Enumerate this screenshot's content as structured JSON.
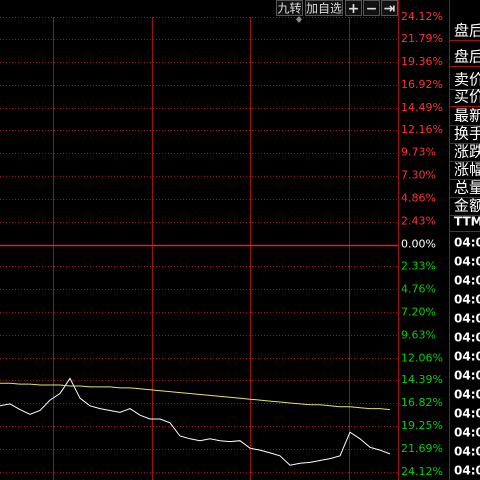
{
  "toolbar": [
    "九转",
    "加自选",
    "+",
    "−",
    "⇥"
  ],
  "chart_data": {
    "type": "line",
    "ylim": [
      -24.12,
      24.12
    ],
    "yticks": [
      {
        "value": 24.12,
        "label": "24.12%"
      },
      {
        "value": 21.79,
        "label": "21.79%"
      },
      {
        "value": 19.36,
        "label": "19.36%"
      },
      {
        "value": 16.92,
        "label": "16.92%"
      },
      {
        "value": 14.49,
        "label": "14.49%"
      },
      {
        "value": 12.16,
        "label": "12.16%"
      },
      {
        "value": 9.73,
        "label": "9.73%"
      },
      {
        "value": 7.3,
        "label": "7.30%"
      },
      {
        "value": 4.86,
        "label": "4.86%"
      },
      {
        "value": 2.43,
        "label": "2.43%"
      },
      {
        "value": 0,
        "label": "0.00%"
      },
      {
        "value": -2.33,
        "label": "2.33%"
      },
      {
        "value": -4.76,
        "label": "4.76%"
      },
      {
        "value": -7.2,
        "label": "7.20%"
      },
      {
        "value": -9.63,
        "label": "9.63%"
      },
      {
        "value": -12.06,
        "label": "12.06%"
      },
      {
        "value": -14.39,
        "label": "14.39%"
      },
      {
        "value": -16.82,
        "label": "16.82%"
      },
      {
        "value": -19.25,
        "label": "19.25%"
      },
      {
        "value": -21.69,
        "label": "21.69%"
      },
      {
        "value": -24.12,
        "label": "24.12%"
      }
    ],
    "grid": true,
    "series": [
      {
        "color": "#ffffff",
        "values": [
          -17.1,
          -16.9,
          -17.5,
          -18.0,
          -17.6,
          -16.5,
          -15.8,
          -14.2,
          -16.3,
          -17.1,
          -17.4,
          -17.6,
          -17.8,
          -17.4,
          -18.1,
          -18.5,
          -18.5,
          -18.9,
          -20.3,
          -20.6,
          -20.8,
          -20.6,
          -20.8,
          -20.9,
          -20.8,
          -21.6,
          -21.8,
          -22.1,
          -22.4,
          -23.4,
          -23.2,
          -23.1,
          -22.9,
          -22.7,
          -22.4,
          -19.9,
          -20.6,
          -21.5,
          -21.8,
          -22.2
        ]
      },
      {
        "color": "#e8e070",
        "values": [
          -14.7,
          -14.7,
          -14.8,
          -14.8,
          -14.9,
          -14.9,
          -14.9,
          -15.0,
          -15.0,
          -15.1,
          -15.1,
          -15.1,
          -15.2,
          -15.2,
          -15.3,
          -15.4,
          -15.5,
          -15.6,
          -15.7,
          -15.8,
          -15.9,
          -16.0,
          -16.1,
          -16.2,
          -16.3,
          -16.4,
          -16.5,
          -16.6,
          -16.7,
          -16.8,
          -16.9,
          -17.0,
          -17.0,
          -17.1,
          -17.2,
          -17.2,
          -17.3,
          -17.4,
          -17.4,
          -17.5
        ]
      }
    ]
  },
  "side_panel": {
    "labels": [
      "盘后",
      "盘后",
      "卖价",
      "买价",
      "最新",
      "换手",
      "涨跌",
      "涨幅",
      "总量",
      "金额",
      "TTM"
    ],
    "times": [
      "04:0",
      "04:0",
      "04:0",
      "04:0",
      "04:0",
      "04:0",
      "04:0",
      "04:0",
      "04:0",
      "04:0",
      "04:0",
      "04:0",
      "04:0"
    ]
  }
}
